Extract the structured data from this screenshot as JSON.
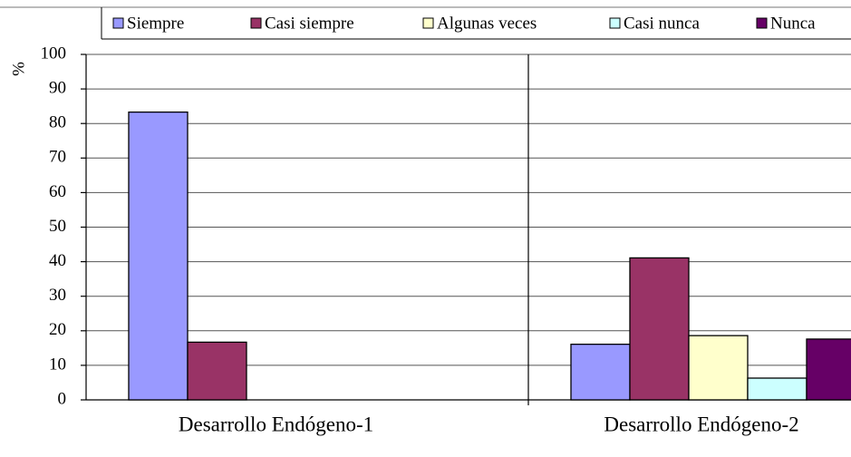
{
  "chart_data": {
    "type": "bar",
    "y_label": "%",
    "categories": [
      "Desarrollo Endógeno-1",
      "Desarrollo Endógeno-2"
    ],
    "series": [
      {
        "name": "Siempre",
        "color": "#9999ff",
        "values": [
          83.3,
          16.1
        ]
      },
      {
        "name": "Casi siempre",
        "color": "#993366",
        "values": [
          16.7,
          41.1
        ]
      },
      {
        "name": "Algunas veces",
        "color": "#ffffcc",
        "values": [
          0,
          18.6
        ]
      },
      {
        "name": "Casi nunca",
        "color": "#ccffff",
        "values": [
          0,
          6.3
        ]
      },
      {
        "name": "Nunca",
        "color": "#660066",
        "values": [
          0,
          17.6
        ]
      }
    ],
    "ylim": [
      0,
      100
    ],
    "yticks": [
      0,
      10,
      20,
      30,
      40,
      50,
      60,
      70,
      80,
      90,
      100
    ],
    "grid": true,
    "legend": "top"
  }
}
